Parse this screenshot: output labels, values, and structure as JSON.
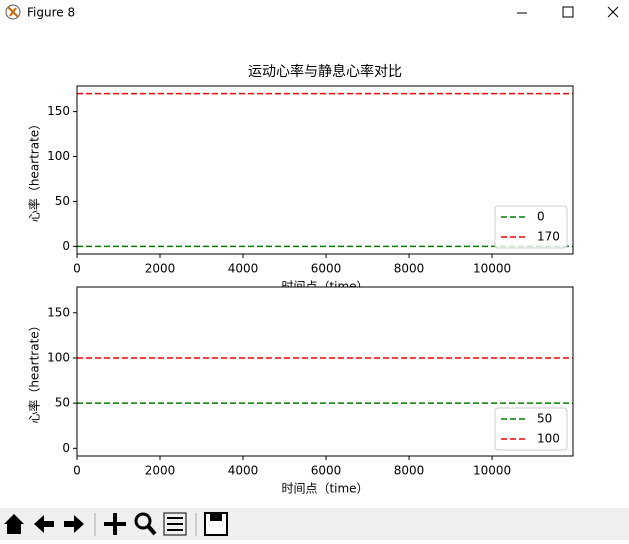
{
  "window": {
    "title": "Figure 8"
  },
  "chart_data": [
    {
      "type": "line",
      "title": "运动心率与静息心率对比",
      "x_label": "时间点（time）",
      "y_label": "心率（heartrate）",
      "x": [
        0,
        11950
      ],
      "series": [
        {
          "name": "0",
          "color": "#008000",
          "values": [
            0,
            0
          ]
        },
        {
          "name": "170",
          "color": "#ff0000",
          "values": [
            170,
            170
          ]
        }
      ],
      "xlim": [
        0,
        11950
      ],
      "xticks": [
        0,
        2000,
        4000,
        6000,
        8000,
        10000
      ],
      "ylim": [
        -8.5,
        178.5
      ],
      "yticks": [
        0,
        50,
        100,
        150
      ],
      "legend": "lower right",
      "line_style": "dashed"
    },
    {
      "type": "line",
      "x_label": "时间点（time）",
      "y_label": "心率（heartrate）",
      "x": [
        0,
        11950
      ],
      "series": [
        {
          "name": "50",
          "color": "#008000",
          "values": [
            50,
            50
          ]
        },
        {
          "name": "100",
          "color": "#ff0000",
          "values": [
            100,
            100
          ]
        }
      ],
      "xlim": [
        0,
        11950
      ],
      "xticks": [
        0,
        2000,
        4000,
        6000,
        8000,
        10000
      ],
      "ylim": [
        -8.5,
        178.5
      ],
      "yticks": [
        0,
        50,
        100,
        150
      ],
      "legend": "lower right",
      "line_style": "dashed"
    }
  ]
}
